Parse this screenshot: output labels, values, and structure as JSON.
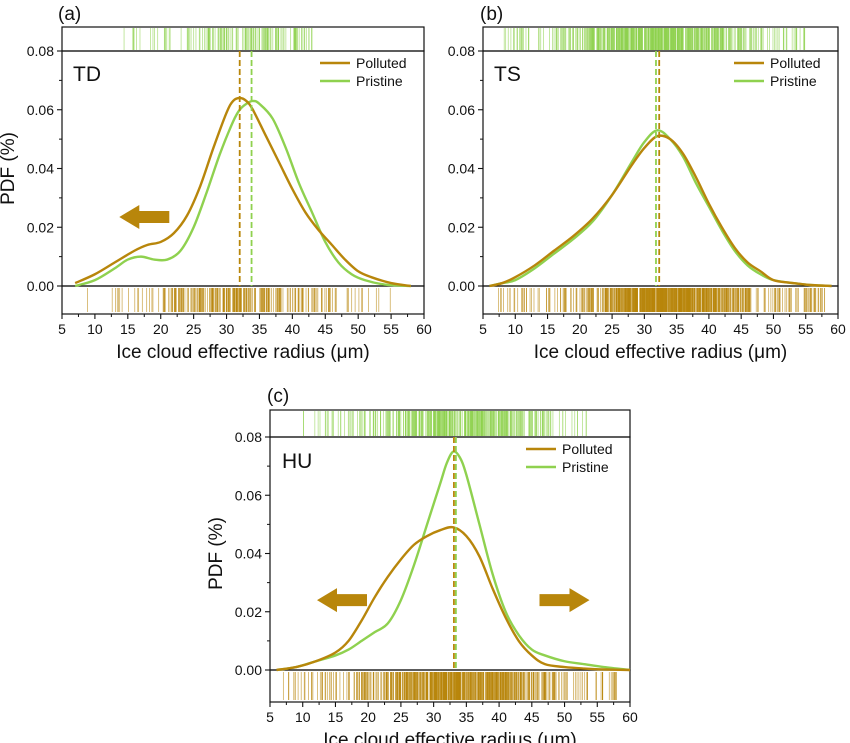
{
  "colors": {
    "polluted": "#b8860b",
    "pristine": "#8fd14f",
    "axis": "#111111"
  },
  "shared": {
    "xlabel": "Ice cloud effective radius (μm)",
    "ylabel": "PDF (%)",
    "x_ticks": [
      5,
      10,
      15,
      20,
      25,
      30,
      35,
      40,
      45,
      50,
      55,
      60
    ],
    "y_ticks": [
      "0.00",
      "0.02",
      "0.04",
      "0.06",
      "0.08"
    ],
    "legend": [
      "Polluted",
      "Pristine"
    ]
  },
  "chart_data": [
    {
      "type": "line",
      "panel_label": "(a)",
      "region": "TD",
      "xlabel": "Ice cloud effective radius (μm)",
      "ylabel": "PDF (%)",
      "xlim": [
        5,
        60
      ],
      "ylim": [
        0,
        0.08
      ],
      "grid": false,
      "legend_position": "top-right",
      "series": [
        {
          "name": "Polluted",
          "color": "#b8860b",
          "x": [
            7,
            10,
            13,
            16,
            18,
            20,
            22,
            24,
            26,
            28,
            30,
            31,
            32,
            33,
            34,
            36,
            38,
            40,
            42,
            44,
            46,
            48,
            50,
            52,
            55,
            58
          ],
          "y": [
            0.001,
            0.004,
            0.008,
            0.012,
            0.014,
            0.015,
            0.018,
            0.024,
            0.034,
            0.047,
            0.059,
            0.063,
            0.064,
            0.063,
            0.06,
            0.051,
            0.042,
            0.033,
            0.025,
            0.019,
            0.014,
            0.009,
            0.005,
            0.003,
            0.001,
            0.0
          ],
          "mean": 32
        },
        {
          "name": "Pristine",
          "color": "#8fd14f",
          "x": [
            7,
            10,
            13,
            15,
            17,
            19,
            21,
            23,
            25,
            27,
            29,
            31,
            32,
            33,
            34,
            35,
            37,
            39,
            41,
            43,
            45,
            47,
            49,
            51,
            54,
            58
          ],
          "y": [
            0.0,
            0.002,
            0.006,
            0.009,
            0.01,
            0.009,
            0.009,
            0.012,
            0.02,
            0.032,
            0.045,
            0.056,
            0.06,
            0.062,
            0.063,
            0.062,
            0.057,
            0.047,
            0.035,
            0.025,
            0.015,
            0.008,
            0.004,
            0.002,
            0.0005,
            0.0
          ],
          "mean": 33.8
        }
      ],
      "rug_density": {
        "polluted": [
          8,
          55
        ],
        "pristine": [
          14,
          43
        ]
      },
      "annotations": [
        {
          "type": "arrow",
          "direction": "left",
          "color": "#b8860b"
        }
      ]
    },
    {
      "type": "line",
      "panel_label": "(b)",
      "region": "TS",
      "xlabel": "Ice cloud effective radius (μm)",
      "ylabel": "",
      "xlim": [
        5,
        60
      ],
      "ylim": [
        0,
        0.08
      ],
      "grid": false,
      "legend_position": "top-right",
      "series": [
        {
          "name": "Polluted",
          "color": "#b8860b",
          "x": [
            6,
            8,
            10,
            13,
            16,
            19,
            22,
            25,
            28,
            30,
            32,
            34,
            36,
            38,
            40,
            42,
            44,
            46,
            48,
            50,
            53,
            56,
            59
          ],
          "y": [
            0.0,
            0.001,
            0.003,
            0.007,
            0.012,
            0.017,
            0.023,
            0.031,
            0.041,
            0.047,
            0.051,
            0.05,
            0.045,
            0.037,
            0.028,
            0.02,
            0.013,
            0.008,
            0.005,
            0.002,
            0.001,
            0.0003,
            0.0
          ],
          "mean": 32.3
        },
        {
          "name": "Pristine",
          "color": "#8fd14f",
          "x": [
            6,
            8,
            10,
            13,
            16,
            19,
            22,
            25,
            28,
            30,
            32,
            34,
            36,
            38,
            40,
            42,
            44,
            46,
            48,
            50,
            53,
            56,
            59
          ],
          "y": [
            0.0,
            0.001,
            0.002,
            0.006,
            0.011,
            0.016,
            0.022,
            0.031,
            0.042,
            0.049,
            0.053,
            0.05,
            0.044,
            0.035,
            0.027,
            0.019,
            0.012,
            0.007,
            0.004,
            0.002,
            0.001,
            0.0003,
            0.0
          ],
          "mean": 31.8
        }
      ],
      "rug_density": {
        "polluted": [
          7,
          58
        ],
        "pristine": [
          8,
          56
        ]
      },
      "annotations": []
    },
    {
      "type": "line",
      "panel_label": "(c)",
      "region": "HU",
      "xlabel": "Ice cloud effective radius (μm)",
      "ylabel": "PDF (%)",
      "xlim": [
        5,
        60
      ],
      "ylim": [
        0,
        0.08
      ],
      "grid": false,
      "legend_position": "top-right",
      "series": [
        {
          "name": "Polluted",
          "color": "#b8860b",
          "x": [
            6,
            9,
            12,
            15,
            17,
            19,
            21,
            23,
            25,
            27,
            29,
            31,
            33,
            35,
            37,
            39,
            41,
            43,
            45,
            47,
            50,
            53,
            56,
            60
          ],
          "y": [
            0.0,
            0.001,
            0.003,
            0.006,
            0.01,
            0.017,
            0.025,
            0.032,
            0.038,
            0.043,
            0.046,
            0.048,
            0.049,
            0.046,
            0.039,
            0.028,
            0.018,
            0.01,
            0.005,
            0.002,
            0.001,
            0.0005,
            0.0002,
            0.0
          ],
          "mean": 33.1
        },
        {
          "name": "Pristine",
          "color": "#8fd14f",
          "x": [
            6,
            9,
            12,
            15,
            17,
            19,
            21,
            23,
            25,
            27,
            29,
            31,
            32,
            33,
            34,
            35,
            37,
            39,
            41,
            43,
            45,
            47,
            50,
            53,
            56,
            60
          ],
          "y": [
            0.0,
            0.001,
            0.003,
            0.005,
            0.007,
            0.01,
            0.013,
            0.016,
            0.024,
            0.036,
            0.05,
            0.064,
            0.071,
            0.075,
            0.073,
            0.067,
            0.05,
            0.033,
            0.02,
            0.012,
            0.007,
            0.005,
            0.003,
            0.002,
            0.001,
            0.0
          ],
          "mean": 33.4
        }
      ],
      "rug_density": {
        "polluted": [
          7,
          58
        ],
        "pristine": [
          10,
          55
        ]
      },
      "annotations": [
        {
          "type": "arrow",
          "direction": "left",
          "color": "#b8860b"
        },
        {
          "type": "arrow",
          "direction": "right",
          "color": "#b8860b"
        }
      ]
    }
  ]
}
